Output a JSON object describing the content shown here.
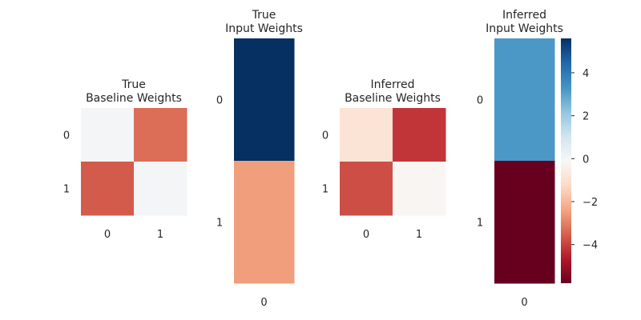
{
  "chart_data": [
    {
      "type": "heatmap",
      "title": [
        "True",
        "Baseline Weights"
      ],
      "rows": [
        "0",
        "1"
      ],
      "cols": [
        "0",
        "1"
      ],
      "values": [
        [
          0.0,
          -3.3
        ],
        [
          -3.6,
          0.0
        ]
      ]
    },
    {
      "type": "heatmap",
      "title": [
        "True",
        "Input Weights"
      ],
      "rows": [
        "0",
        "1"
      ],
      "cols": [
        "0"
      ],
      "values": [
        [
          5.6
        ],
        [
          -2.5
        ]
      ]
    },
    {
      "type": "heatmap",
      "title": [
        "Inferred",
        "Baseline Weights"
      ],
      "rows": [
        "0",
        "1"
      ],
      "cols": [
        "0",
        "1"
      ],
      "values": [
        [
          -0.9,
          -4.2
        ],
        [
          -3.8,
          -0.2
        ]
      ]
    },
    {
      "type": "heatmap",
      "title": [
        "Inferred",
        "Input Weights"
      ],
      "rows": [
        "0",
        "1"
      ],
      "cols": [
        "0"
      ],
      "values": [
        [
          3.2
        ],
        [
          -5.8
        ]
      ]
    }
  ],
  "colorbar": {
    "colormap": "RdBu",
    "vmin": -5.8,
    "vmax": 5.6,
    "ticks": [
      4,
      2,
      0,
      -2,
      -4
    ],
    "tick_labels": [
      "4",
      "2",
      "0",
      "−2",
      "−4"
    ]
  }
}
